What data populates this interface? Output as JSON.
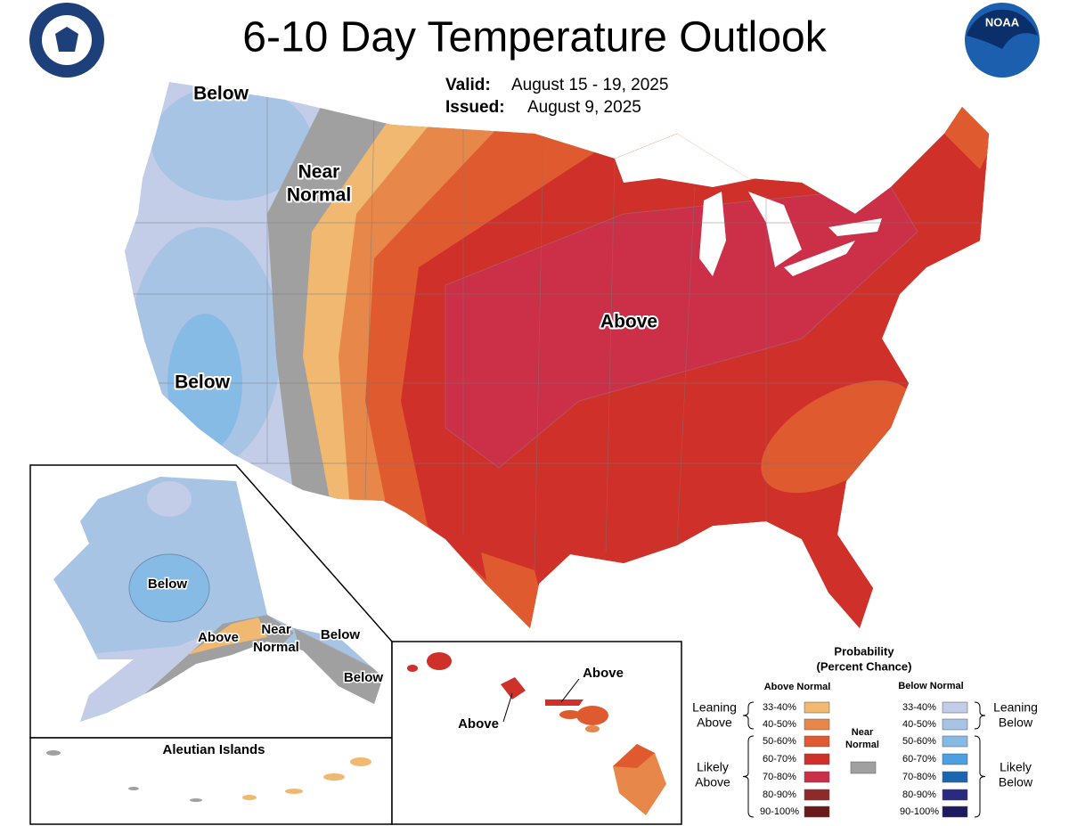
{
  "title": "6-10 Day Temperature Outlook",
  "valid": {
    "label": "Valid:",
    "text": "August 15 - 19, 2025"
  },
  "issued": {
    "label": "Issued:",
    "text": "August 9, 2025"
  },
  "noaa_logo": "NOAA",
  "conus_labels": [
    {
      "lines": [
        "Below"
      ]
    },
    {
      "lines": [
        "Near",
        "Normal"
      ]
    },
    {
      "lines": [
        "Below"
      ]
    },
    {
      "lines": [
        "Above"
      ]
    }
  ],
  "alaska_labels": [
    {
      "lines": [
        "Below"
      ]
    },
    {
      "lines": [
        "Above"
      ]
    },
    {
      "lines": [
        "Near",
        "Normal"
      ]
    },
    {
      "lines": [
        "Below"
      ]
    },
    {
      "lines": [
        "Below"
      ]
    }
  ],
  "aleutian_title": "Aleutian Islands",
  "hawaii_labels": [
    "Above",
    "Above"
  ],
  "legend": {
    "title": [
      "Probability",
      "(Percent Chance)"
    ],
    "above": {
      "heading": "Above Normal",
      "rows": [
        {
          "label": "33-40%",
          "color": "#f0b870"
        },
        {
          "label": "40-50%",
          "color": "#e8874a"
        },
        {
          "label": "50-60%",
          "color": "#e05a30"
        },
        {
          "label": "60-70%",
          "color": "#d0302a"
        },
        {
          "label": "70-80%",
          "color": "#cc3049"
        },
        {
          "label": "80-90%",
          "color": "#8e2a2a"
        },
        {
          "label": "90-100%",
          "color": "#6b1a1a"
        }
      ]
    },
    "below": {
      "heading": "Below Normal",
      "rows": [
        {
          "label": "33-40%",
          "color": "#c3cde8"
        },
        {
          "label": "40-50%",
          "color": "#a8c4e4"
        },
        {
          "label": "50-60%",
          "color": "#86bbe6"
        },
        {
          "label": "60-70%",
          "color": "#4aa0e0"
        },
        {
          "label": "70-80%",
          "color": "#1a66b0"
        },
        {
          "label": "80-90%",
          "color": "#2a2a80"
        },
        {
          "label": "90-100%",
          "color": "#1e1a60"
        }
      ]
    },
    "near": {
      "lines": [
        "Near",
        "Normal"
      ],
      "color": "#a0a0a0"
    },
    "leaning_above": [
      "Leaning",
      "Above"
    ],
    "likely_above": [
      "Likely",
      "Above"
    ],
    "leaning_below": [
      "Leaning",
      "Below"
    ],
    "likely_below": [
      "Likely",
      "Below"
    ]
  }
}
